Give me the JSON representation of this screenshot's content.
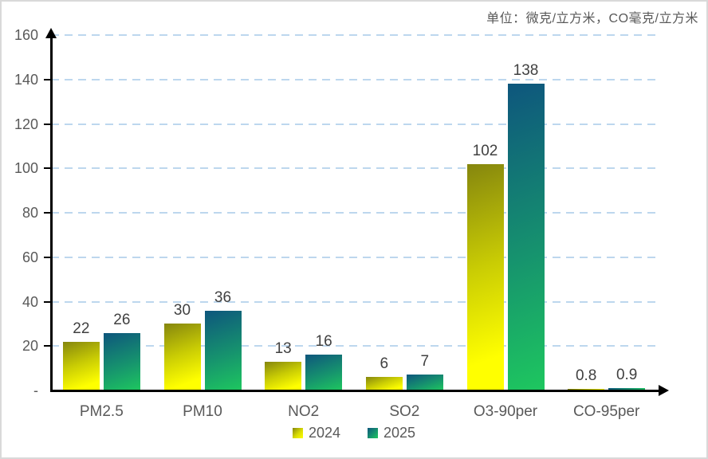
{
  "title": "单位：微克/立方米，CO毫克/立方米",
  "chart_data": {
    "type": "bar",
    "categories": [
      "PM2.5",
      "PM10",
      "NO2",
      "SO2",
      "O3-90per",
      "CO-95per"
    ],
    "series": [
      {
        "name": "2024",
        "values": [
          22,
          30,
          13,
          6,
          102,
          0.8
        ]
      },
      {
        "name": "2025",
        "values": [
          26,
          36,
          16,
          7,
          138,
          0.9
        ]
      }
    ],
    "value_labels": [
      [
        "22",
        "30",
        "13",
        "6",
        "102",
        "0.8"
      ],
      [
        "26",
        "36",
        "16",
        "7",
        "138",
        "0.9"
      ]
    ],
    "title": "单位：微克/立方米，CO毫克/立方米",
    "xlabel": "",
    "ylabel": "",
    "ylim": [
      0,
      160
    ],
    "ytick_step": 20,
    "ytick_labels": [
      "-",
      "20",
      "40",
      "60",
      "80",
      "100",
      "120",
      "140",
      "160"
    ],
    "grid": "dashed horizontal",
    "legend_position": "bottom-center",
    "colors": {
      "gridline": "#bdd7ee",
      "axis": "#000000",
      "tick_text": "#595959",
      "value_text": "#404040",
      "category_text": "#595959",
      "title_text": "#595959",
      "frame": "#d9d9d9",
      "series_2024_gradient": [
        "#85860e",
        "#c9cc04",
        "#ffff00"
      ],
      "series_2025_gradient": [
        "#0e567d",
        "#16926e",
        "#1ec75f"
      ]
    }
  }
}
